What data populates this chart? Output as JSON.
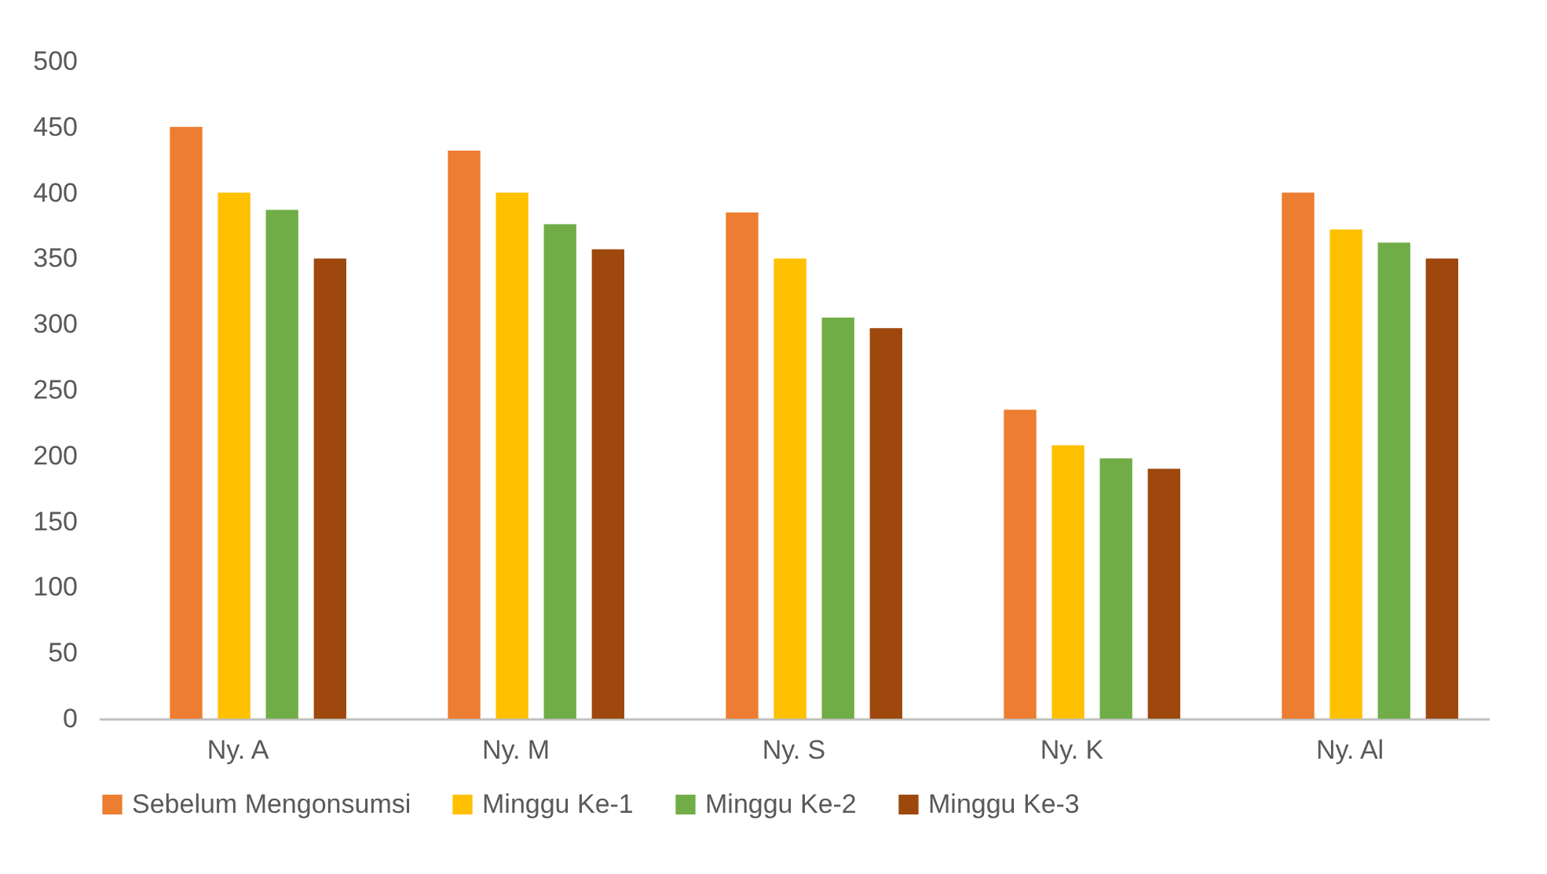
{
  "chart_data": {
    "type": "bar",
    "categories": [
      "Ny. A",
      "Ny. M",
      "Ny. S",
      "Ny. K",
      "Ny. Al"
    ],
    "series": [
      {
        "name": "Sebelum Mengonsumsi",
        "color": "#ed7d31",
        "values": [
          450,
          432,
          385,
          235,
          400
        ]
      },
      {
        "name": "Minggu Ke-1",
        "color": "#ffc000",
        "values": [
          400,
          400,
          350,
          208,
          372
        ]
      },
      {
        "name": "Minggu Ke-2",
        "color": "#70ad47",
        "values": [
          387,
          376,
          305,
          198,
          362
        ]
      },
      {
        "name": "Minggu Ke-3",
        "color": "#9e480e",
        "values": [
          350,
          357,
          297,
          190,
          350
        ]
      }
    ],
    "ylim": [
      0,
      500
    ],
    "yticks": [
      0,
      50,
      100,
      150,
      200,
      250,
      300,
      350,
      400,
      450,
      500
    ],
    "grid": false,
    "legend": "bottom"
  }
}
